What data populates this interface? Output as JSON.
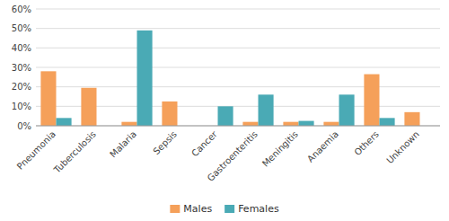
{
  "chart_data": {
    "type": "bar",
    "categories": [
      "Pneumonia",
      "Tuberculosis",
      "Malaria",
      "Sepsis",
      "Cancer",
      "Gastroenteritis",
      "Meningitis",
      "Anaemia",
      "Others",
      "Unknown"
    ],
    "series": [
      {
        "name": "Males",
        "color": "#F5A05A",
        "values": [
          28,
          19.5,
          2,
          12.5,
          0,
          2,
          2,
          2,
          26.5,
          7
        ]
      },
      {
        "name": "Females",
        "color": "#4AAAB5",
        "values": [
          4,
          0,
          49,
          0,
          10,
          16,
          2.5,
          16,
          4,
          0
        ]
      }
    ],
    "ylim": [
      0,
      60
    ],
    "yticks": [
      {
        "value": 0,
        "label": "0%"
      },
      {
        "value": 10,
        "label": "10%"
      },
      {
        "value": 20,
        "label": "20%"
      },
      {
        "value": 30,
        "label": "30%"
      },
      {
        "value": 40,
        "label": "40%"
      },
      {
        "value": 50,
        "label": "50%"
      },
      {
        "value": 60,
        "label": "60%"
      }
    ],
    "grid": true,
    "legend": "bottom"
  }
}
